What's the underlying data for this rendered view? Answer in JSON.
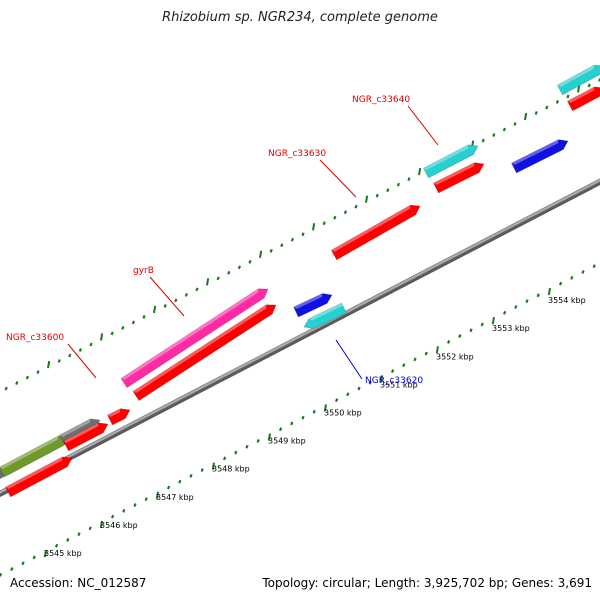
{
  "title": "Rhizobium sp. NGR234, complete genome",
  "footer": {
    "accession": "Accession: NC_012587",
    "summary": "Topology: circular; Length: 3,925,702 bp; Genes: 3,691"
  },
  "colors": {
    "backbone": "#8c8c8c",
    "tick": "#1a7a1a",
    "cds": "#ff0000",
    "gene_pink": "#ff2aa6",
    "gene_cyan": "#27d0d0",
    "gene_blue": "#1010e0",
    "gene_olive": "#6f9a2b",
    "gene_grey": "#6e6e6e",
    "label_red": "#dd0000",
    "label_blue": "#0000cc"
  },
  "ticks": [
    {
      "label": "3545 kbp"
    },
    {
      "label": "3546 kbp"
    },
    {
      "label": "3547 kbp"
    },
    {
      "label": "3548 kbp"
    },
    {
      "label": "3549 kbp"
    },
    {
      "label": "3550 kbp"
    },
    {
      "label": "3551 kbp"
    },
    {
      "label": "3552 kbp"
    },
    {
      "label": "3553 kbp"
    },
    {
      "label": "3554 kbp"
    }
  ],
  "gene_labels": [
    {
      "text": "NGR_c33600",
      "color": "label_red"
    },
    {
      "text": "gyrB",
      "color": "label_red"
    },
    {
      "text": "NGR_c33630",
      "color": "label_red"
    },
    {
      "text": "NGR_c33640",
      "color": "label_red"
    },
    {
      "text": "NGR_c33620",
      "color": "label_blue"
    }
  ]
}
